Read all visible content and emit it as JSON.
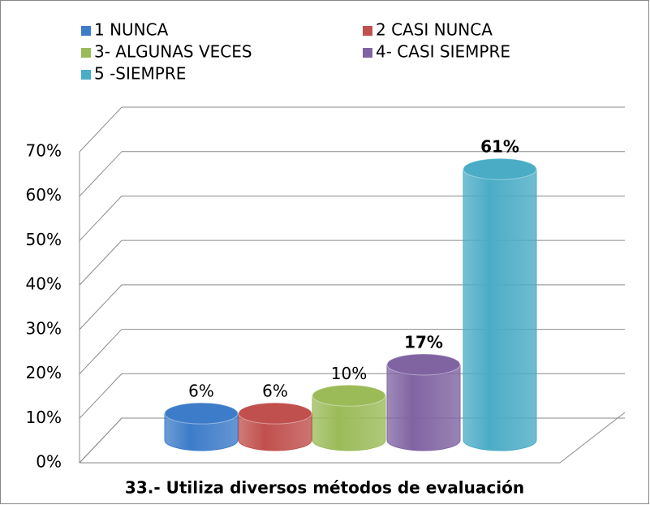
{
  "chart_data": {
    "type": "bar",
    "title": "33.- Utiliza diversos métodos de evaluación",
    "categories": [
      null
    ],
    "series": [
      {
        "name": "1 NUNCA",
        "color": "#3d7cc9",
        "values": [
          6
        ],
        "value_labels": [
          "6%"
        ]
      },
      {
        "name": "2 CASI NUNCA",
        "color": "#c0504d",
        "values": [
          6
        ],
        "value_labels": [
          "6%"
        ]
      },
      {
        "name": "3- ALGUNAS VECES",
        "color": "#9bbb59",
        "values": [
          10
        ],
        "value_labels": [
          "10%"
        ]
      },
      {
        "name": "4- CASI SIEMPRE",
        "color": "#8064a2",
        "values": [
          17
        ],
        "value_labels": [
          "17%"
        ]
      },
      {
        "name": "5 -SIEMPRE",
        "color": "#4bacc6",
        "values": [
          61
        ],
        "value_labels": [
          "61%"
        ]
      }
    ],
    "ylim": [
      0,
      70
    ],
    "yticks": [
      {
        "value": 0,
        "label": "0%"
      },
      {
        "value": 10,
        "label": "10%"
      },
      {
        "value": 20,
        "label": "20%"
      },
      {
        "value": 30,
        "label": "30%"
      },
      {
        "value": 40,
        "label": "40%"
      },
      {
        "value": 50,
        "label": "50%"
      },
      {
        "value": 60,
        "label": "60%"
      },
      {
        "value": 70,
        "label": "70%"
      }
    ],
    "grid": true
  }
}
